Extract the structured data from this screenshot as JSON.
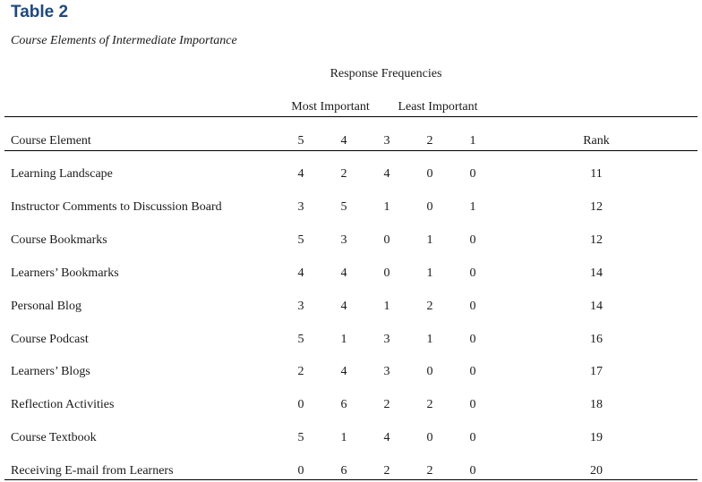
{
  "table": {
    "title": "Table 2",
    "caption": "Course Elements of Intermediate Importance",
    "group_header": "Response Frequencies",
    "most_important_label": "Most Important",
    "least_important_label": "Least Important",
    "columns": {
      "element": "Course Element",
      "c5": "5",
      "c4": "4",
      "c3": "3",
      "c2": "2",
      "c1": "1",
      "rank": "Rank"
    },
    "rows": [
      {
        "element": "Learning Landscape",
        "c5": "4",
        "c4": "2",
        "c3": "4",
        "c2": "0",
        "c1": "0",
        "rank": "11"
      },
      {
        "element": "Instructor Comments to Discussion Board",
        "c5": "3",
        "c4": "5",
        "c3": "1",
        "c2": "0",
        "c1": "1",
        "rank": "12"
      },
      {
        "element": "Course Bookmarks",
        "c5": "5",
        "c4": "3",
        "c3": "0",
        "c2": "1",
        "c1": "0",
        "rank": "12"
      },
      {
        "element": "Learners’ Bookmarks",
        "c5": "4",
        "c4": "4",
        "c3": "0",
        "c2": "1",
        "c1": "0",
        "rank": "14"
      },
      {
        "element": "Personal Blog",
        "c5": "3",
        "c4": "4",
        "c3": "1",
        "c2": "2",
        "c1": "0",
        "rank": "14"
      },
      {
        "element": "Course Podcast",
        "c5": "5",
        "c4": "1",
        "c3": "3",
        "c2": "1",
        "c1": "0",
        "rank": "16"
      },
      {
        "element": "Learners’ Blogs",
        "c5": "2",
        "c4": "4",
        "c3": "3",
        "c2": "0",
        "c1": "0",
        "rank": "17"
      },
      {
        "element": "Reflection Activities",
        "c5": "0",
        "c4": "6",
        "c3": "2",
        "c2": "2",
        "c1": "0",
        "rank": "18"
      },
      {
        "element": "Course Textbook",
        "c5": "5",
        "c4": "1",
        "c3": "4",
        "c2": "0",
        "c1": "0",
        "rank": "19"
      },
      {
        "element": "Receiving E-mail from Learners",
        "c5": "0",
        "c4": "6",
        "c3": "2",
        "c2": "2",
        "c1": "0",
        "rank": "20"
      }
    ]
  }
}
